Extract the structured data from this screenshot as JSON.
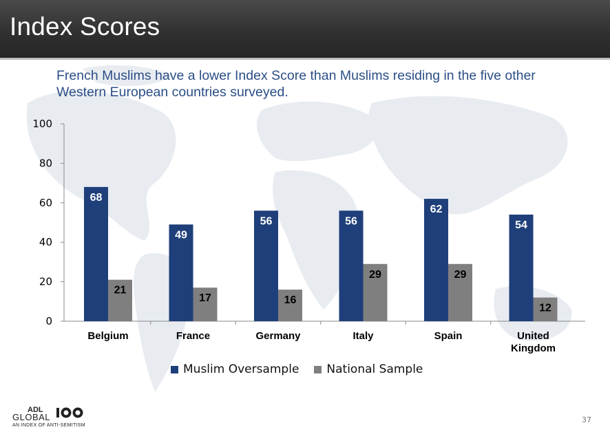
{
  "slide": {
    "title": "Index Scores",
    "subtitle": "French Muslims have a lower Index Score than Muslims residing in the five other Western European countries surveyed.",
    "page_number": "37"
  },
  "logo": {
    "wordmark": "ADL GLOBAL 100",
    "word_global": "GLOBAL",
    "word_adl": "ADL",
    "tagline": "AN INDEX OF ANTI-SEMITISM"
  },
  "colors": {
    "muslim": "#1f3f7a",
    "national": "#7f7f7f",
    "header": "#333333",
    "subtitle": "#2b4e86"
  },
  "chart_data": {
    "type": "bar",
    "categories": [
      "Belgium",
      "France",
      "Germany",
      "Italy",
      "Spain",
      "United Kingdom"
    ],
    "category_lines": [
      [
        "Belgium"
      ],
      [
        "France"
      ],
      [
        "Germany"
      ],
      [
        "Italy"
      ],
      [
        "Spain"
      ],
      [
        "United",
        "Kingdom"
      ]
    ],
    "series": [
      {
        "name": "Muslim Oversample",
        "values": [
          68,
          49,
          56,
          56,
          62,
          54
        ],
        "color": "#1f3f7a",
        "label_color": "#ffffff"
      },
      {
        "name": "National Sample",
        "values": [
          21,
          17,
          16,
          29,
          29,
          12
        ],
        "color": "#7f7f7f",
        "label_color": "#000000"
      }
    ],
    "ylim": [
      0,
      100
    ],
    "yticks": [
      0,
      20,
      40,
      60,
      80,
      100
    ],
    "legend_position": "bottom",
    "grid": false
  }
}
